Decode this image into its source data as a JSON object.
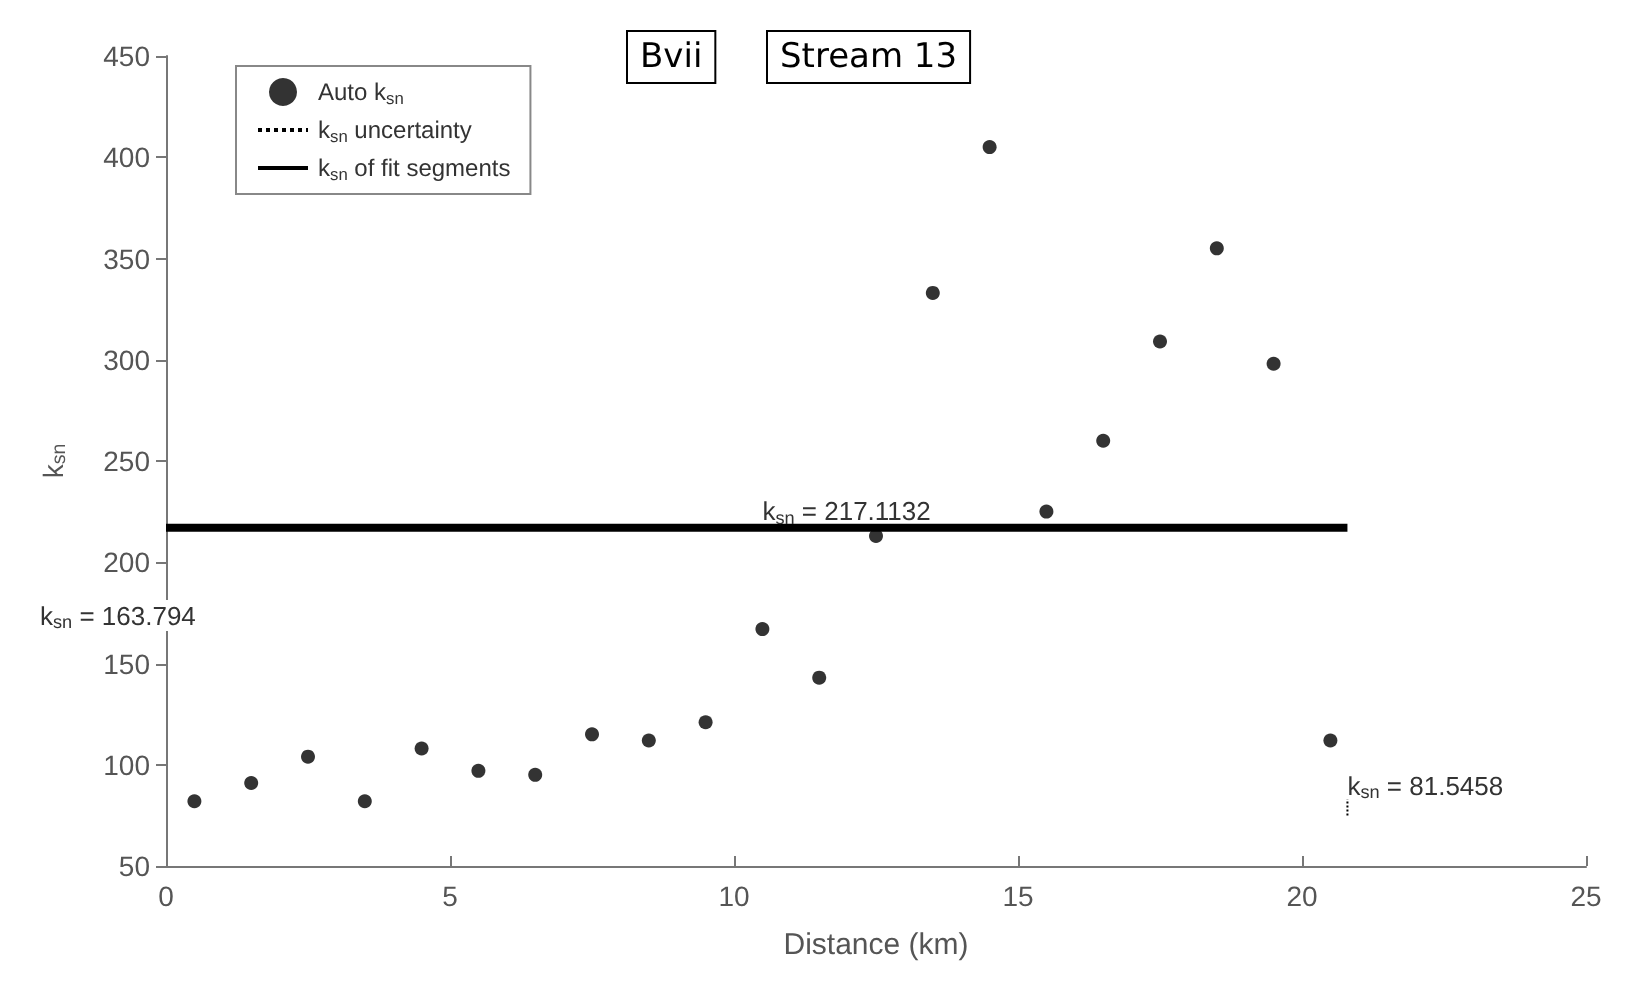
{
  "chart_data": {
    "type": "scatter",
    "xlabel": "Distance (km)",
    "ylabel": "k$_{sn}$",
    "xlim": [
      0,
      25
    ],
    "xticks": [
      0,
      5,
      10,
      15,
      20,
      25
    ],
    "ylim": [
      50,
      450
    ],
    "yticks": [
      50,
      100,
      150,
      200,
      250,
      300,
      350,
      400,
      450
    ],
    "grid": false,
    "legend": "top left",
    "series": [
      {
        "name": "Auto k$_{sn}$",
        "marker": "circle",
        "color": "#000000",
        "x": [
          0.5,
          1.5,
          2.5,
          3.5,
          4.5,
          5.5,
          6.5,
          7.5,
          8.5,
          9.5,
          10.5,
          11.5,
          12.5,
          13.5,
          14.5,
          15.5,
          16.5,
          17.5,
          18.5,
          19.5,
          20.5
        ],
        "values": [
          82,
          91,
          104,
          82,
          108,
          97,
          95,
          115,
          112,
          121,
          167,
          143,
          213,
          333,
          405,
          225,
          260,
          309,
          355,
          298,
          112
        ]
      },
      {
        "name": "k$_{sn}$ uncertainty",
        "type": "line",
        "line_style": "dotted",
        "marker": "none",
        "color": "#000000",
        "x": [
          20.8,
          20.8
        ],
        "values": [
          75,
          83
        ]
      },
      {
        "name": "k$_{sn}$ of fit segments",
        "type": "line",
        "line_style": "solid",
        "marker": "none",
        "color": "#000000",
        "x": [
          0,
          20.8
        ],
        "values": [
          217,
          217
        ]
      }
    ],
    "annotations": [
      {
        "text": "k$_{sn}$ = 217.1132",
        "x": 10.5,
        "y": 217.1132
      },
      {
        "text": "k$_{sn}$ = 81.5458",
        "x": 20.8,
        "y": 81.5458
      },
      "Bvii",
      "Stream 13",
      "k$_{sn}$ = 163.794"
    ]
  }
}
